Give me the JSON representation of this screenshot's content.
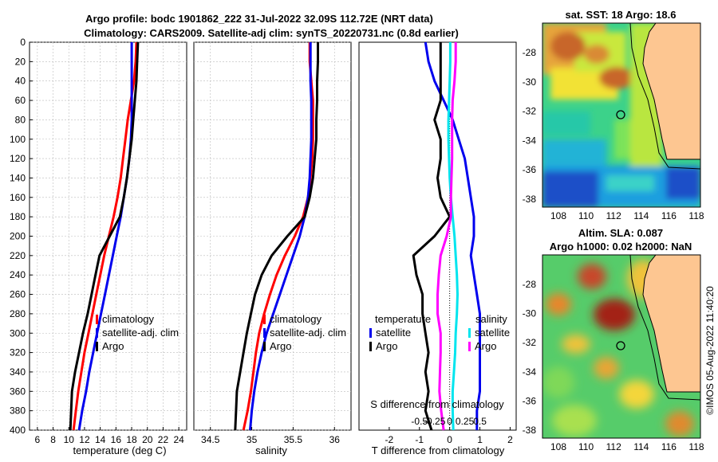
{
  "title": {
    "line1": "Argo profile: bodc 1901862_222 31-Jul-2022 32.09S 112.72E (NRT data)",
    "line2": "Climatology: CARS2009. Satellite-adj clim: synTS_20220731.nc (0.8d earlier)"
  },
  "colors": {
    "climatology": "#ff0000",
    "satellite": "#0000ee",
    "argo": "#000000",
    "sal_sat": "#00e5ee",
    "sal_argo": "#ff00ff"
  },
  "chart_data": [
    {
      "type": "line",
      "name": "temperature-profile",
      "xlabel": "temperature (deg C)",
      "ylabel": "depth",
      "xlim": [
        5,
        25
      ],
      "ylim": [
        400,
        0
      ],
      "xticks": [
        6,
        8,
        10,
        12,
        14,
        16,
        18,
        20,
        22,
        24
      ],
      "yticks": [
        0,
        20,
        40,
        60,
        80,
        100,
        120,
        140,
        160,
        180,
        200,
        220,
        240,
        260,
        280,
        300,
        320,
        340,
        360,
        380,
        400
      ],
      "grid": true,
      "legend": {
        "position": "lower-right",
        "entries": [
          "climatology",
          "satellite-adj. clim",
          "Argo"
        ]
      },
      "series": [
        {
          "name": "climatology",
          "color": "#ff0000",
          "depth": [
            0,
            20,
            40,
            60,
            80,
            100,
            120,
            140,
            160,
            180,
            200,
            220,
            240,
            260,
            280,
            300,
            320,
            340,
            360,
            380,
            400
          ],
          "values": [
            18.6,
            18.5,
            18.3,
            17.9,
            17.5,
            17.2,
            16.9,
            16.6,
            16.2,
            15.7,
            15.1,
            14.5,
            14.0,
            13.5,
            13.0,
            12.5,
            12.0,
            11.6,
            11.2,
            10.9,
            10.6
          ]
        },
        {
          "name": "satellite-adj. clim",
          "color": "#0000ee",
          "depth": [
            0,
            20,
            40,
            60,
            80,
            100,
            120,
            140,
            160,
            180,
            200,
            220,
            240,
            260,
            280,
            300,
            320,
            340,
            360,
            380,
            400
          ],
          "values": [
            18.0,
            18.0,
            18.0,
            18.0,
            18.0,
            17.9,
            17.7,
            17.4,
            17.0,
            16.6,
            16.1,
            15.6,
            15.1,
            14.6,
            14.1,
            13.6,
            13.1,
            12.6,
            12.2,
            11.7,
            11.3
          ]
        },
        {
          "name": "Argo",
          "color": "#000000",
          "depth": [
            0,
            20,
            40,
            60,
            80,
            100,
            120,
            140,
            160,
            180,
            200,
            220,
            240,
            260,
            280,
            300,
            320,
            340,
            360,
            380,
            400
          ],
          "values": [
            18.8,
            18.7,
            18.6,
            18.4,
            18.2,
            18.0,
            17.7,
            17.4,
            17.0,
            16.5,
            15.2,
            13.9,
            13.4,
            12.9,
            12.4,
            11.8,
            11.3,
            10.8,
            10.4,
            10.3,
            10.2
          ]
        }
      ]
    },
    {
      "type": "line",
      "name": "salinity-profile",
      "xlabel": "salinity",
      "ylabel": "depth",
      "xlim": [
        34.3,
        36.2
      ],
      "ylim": [
        400,
        0
      ],
      "xticks": [
        34.5,
        35,
        35.5,
        36
      ],
      "grid": true,
      "legend": {
        "position": "lower-right",
        "entries": [
          "climatology",
          "satellite-adj. clim",
          "Argo"
        ]
      },
      "series": [
        {
          "name": "climatology",
          "color": "#ff0000",
          "depth": [
            0,
            20,
            40,
            60,
            80,
            100,
            120,
            140,
            160,
            180,
            200,
            220,
            240,
            260,
            280,
            300,
            320,
            340,
            360,
            380,
            400
          ],
          "values": [
            35.7,
            35.7,
            35.72,
            35.74,
            35.74,
            35.74,
            35.73,
            35.71,
            35.68,
            35.62,
            35.52,
            35.4,
            35.3,
            35.22,
            35.15,
            35.09,
            35.05,
            35.02,
            34.99,
            34.95,
            34.9
          ]
        },
        {
          "name": "satellite-adj. clim",
          "color": "#0000ee",
          "depth": [
            0,
            20,
            40,
            60,
            80,
            100,
            120,
            140,
            160,
            180,
            200,
            220,
            240,
            260,
            280,
            300,
            320,
            340,
            360,
            380,
            400
          ],
          "values": [
            35.71,
            35.71,
            35.71,
            35.72,
            35.72,
            35.72,
            35.71,
            35.7,
            35.68,
            35.64,
            35.58,
            35.5,
            35.42,
            35.34,
            35.26,
            35.18,
            35.12,
            35.07,
            35.03,
            35.0,
            34.98
          ]
        },
        {
          "name": "Argo",
          "color": "#000000",
          "depth": [
            0,
            20,
            40,
            60,
            80,
            100,
            120,
            140,
            160,
            180,
            200,
            220,
            240,
            260,
            280,
            300,
            320,
            340,
            360,
            380,
            400
          ],
          "values": [
            35.8,
            35.8,
            35.79,
            35.79,
            35.78,
            35.78,
            35.76,
            35.74,
            35.7,
            35.64,
            35.43,
            35.24,
            35.12,
            35.04,
            34.99,
            34.94,
            34.9,
            34.86,
            34.82,
            34.81,
            34.8
          ]
        }
      ]
    },
    {
      "type": "line",
      "name": "difference-profile",
      "xlabel": "T difference from climatology",
      "x2label": "S difference from climatology",
      "ylabel": "depth",
      "xlim": [
        -3,
        2.2
      ],
      "ylim": [
        400,
        0
      ],
      "xticks": [
        -2,
        -1,
        0,
        1,
        2
      ],
      "x2ticks": [
        -0.5,
        -0.25,
        0,
        0.25,
        0.5
      ],
      "x2tick_labels": [
        "-0.5",
        "-0.25",
        "0",
        "0.25",
        "0.5"
      ],
      "grid": false,
      "legend": {
        "position": "lower",
        "groups": [
          "temperature",
          "salinity"
        ],
        "entries": [
          "satellite",
          "Argo",
          "satellite",
          "Argo"
        ]
      },
      "series": [
        {
          "name": "T satellite",
          "color": "#0000ee",
          "depth": [
            0,
            20,
            40,
            60,
            80,
            100,
            120,
            140,
            160,
            180,
            200,
            220,
            240,
            260,
            280,
            300,
            320,
            340,
            360,
            380,
            400
          ],
          "values": [
            -0.8,
            -0.7,
            -0.5,
            -0.2,
            0.1,
            0.3,
            0.5,
            0.6,
            0.7,
            0.8,
            0.8,
            0.7,
            0.8,
            0.9,
            1.0,
            1.0,
            1.0,
            1.0,
            1.0,
            0.9,
            0.9
          ]
        },
        {
          "name": "T Argo",
          "color": "#000000",
          "depth": [
            0,
            20,
            40,
            60,
            80,
            100,
            120,
            140,
            160,
            180,
            200,
            220,
            240,
            260,
            280,
            300,
            320,
            340,
            360,
            380,
            400
          ],
          "values": [
            -0.3,
            -0.3,
            -0.3,
            -0.3,
            -0.5,
            -0.3,
            -0.3,
            -0.4,
            -0.3,
            0.0,
            -0.5,
            -1.2,
            -1.1,
            -0.9,
            -0.9,
            -0.8,
            -0.7,
            -0.8,
            -0.7,
            -0.8,
            -0.6
          ]
        },
        {
          "name": "S satellite",
          "color": "#00e5ee",
          "depth": [
            0,
            20,
            40,
            60,
            80,
            100,
            120,
            140,
            160,
            180,
            200,
            220,
            240,
            260,
            280,
            300,
            320,
            340,
            360,
            380,
            400
          ],
          "values": [
            0.01,
            0.01,
            0.0,
            -0.01,
            -0.02,
            -0.02,
            -0.01,
            0.0,
            0.02,
            0.05,
            0.08,
            0.1,
            0.12,
            0.13,
            0.12,
            0.1,
            0.09,
            0.07,
            0.05,
            0.05,
            0.06
          ]
        },
        {
          "name": "S Argo",
          "color": "#ff00ff",
          "depth": [
            0,
            20,
            40,
            60,
            80,
            100,
            120,
            140,
            160,
            180,
            200,
            220,
            240,
            260,
            280,
            300,
            320,
            340,
            360,
            380,
            400
          ],
          "values": [
            0.1,
            0.1,
            0.08,
            0.05,
            0.04,
            0.04,
            0.04,
            0.03,
            0.02,
            0.02,
            -0.05,
            -0.15,
            -0.18,
            -0.2,
            -0.2,
            -0.15,
            -0.15,
            -0.16,
            -0.17,
            -0.14,
            -0.1
          ]
        }
      ]
    }
  ],
  "maps": {
    "sst": {
      "title": "sat. SST: 18 Argo: 18.6",
      "lat_ticks": [
        "-28",
        "-30",
        "-32",
        "-34",
        "-36",
        "-38"
      ],
      "lon_ticks": [
        "108",
        "110",
        "112",
        "114",
        "116",
        "118"
      ]
    },
    "sla": {
      "title1": "Altim. SLA: 0.087",
      "title2": "Argo h1000: 0.02 h2000: NaN",
      "lat_ticks": [
        "-28",
        "-30",
        "-32",
        "-34",
        "-36",
        "-38"
      ],
      "lon_ticks": [
        "108",
        "110",
        "112",
        "114",
        "116",
        "118"
      ]
    }
  },
  "watermark": "©IMOS 05-Aug-2022 11:40:20"
}
